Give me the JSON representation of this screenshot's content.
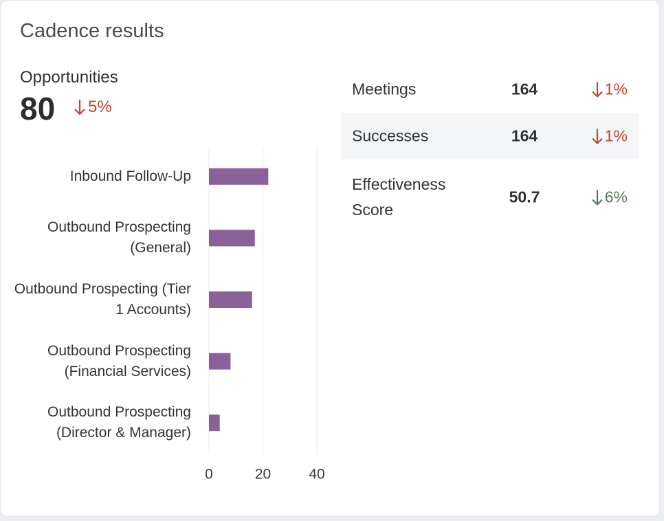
{
  "card": {
    "title": "Cadence results"
  },
  "headline": {
    "label": "Opportunities",
    "value": 80,
    "change": "5%",
    "change_color": "#c2452d"
  },
  "metrics": [
    {
      "name": "Meetings",
      "value": 164,
      "change": "1%",
      "color": "#c2452d"
    },
    {
      "name": "Successes",
      "value": 164,
      "change": "1%",
      "color": "#c2452d"
    },
    {
      "name": "Effectiveness Score",
      "value": 50.7,
      "change": "6%",
      "color": "#4f7a5c"
    }
  ],
  "chart_data": {
    "type": "hbar",
    "categories": [
      "Inbound Follow-Up",
      "Outbound Prospecting (General)",
      "Outbound Prospecting (Tier 1 Accounts)",
      "Outbound Prospecting (Financial Services)",
      "Outbound Prospecting (Director & Manager)"
    ],
    "values": [
      22,
      17,
      16,
      8,
      4
    ],
    "color": "#8a6199",
    "xlim": [
      0,
      40
    ],
    "xticks": [
      0,
      20,
      40
    ],
    "grid": true
  }
}
